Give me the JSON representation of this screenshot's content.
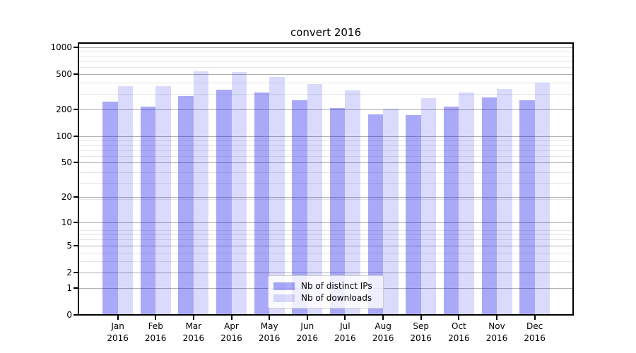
{
  "figure": {
    "background": "#ffffff",
    "axis_color": "#000000"
  },
  "chart_data": {
    "type": "bar",
    "title": "convert 2016",
    "categories": [
      "Jan",
      "Feb",
      "Mar",
      "Apr",
      "May",
      "Jun",
      "Jul",
      "Aug",
      "Sep",
      "Oct",
      "Nov",
      "Dec"
    ],
    "category_year": "2016",
    "series": [
      {
        "name": "Nb of distinct IPs",
        "base_color": "#0a0aeb",
        "alpha": 0.35,
        "fill": "rgba(10,10,235,0.35)",
        "values": [
          244,
          216,
          285,
          335,
          311,
          256,
          207,
          177,
          174,
          217,
          272,
          256
        ]
      },
      {
        "name": "Nb of downloads",
        "base_color": "#0a0aeb",
        "alpha": 0.15,
        "fill": "rgba(10,10,235,0.15)",
        "values": [
          365,
          365,
          538,
          531,
          465,
          387,
          327,
          204,
          269,
          311,
          343,
          404
        ]
      }
    ],
    "yscale": "log(value+1)",
    "ylim": [
      0,
      1000
    ],
    "y_ticks": [
      1000,
      500,
      200,
      100,
      50,
      20,
      10,
      5,
      2,
      1,
      0
    ],
    "grid": {
      "orientation": "horizontal",
      "major_color": "#b0b0b0",
      "minor_color": "#e6e6e6"
    },
    "legend": {
      "position": "lower center",
      "entries": [
        "Nb of distinct IPs",
        "Nb of downloads"
      ]
    }
  }
}
